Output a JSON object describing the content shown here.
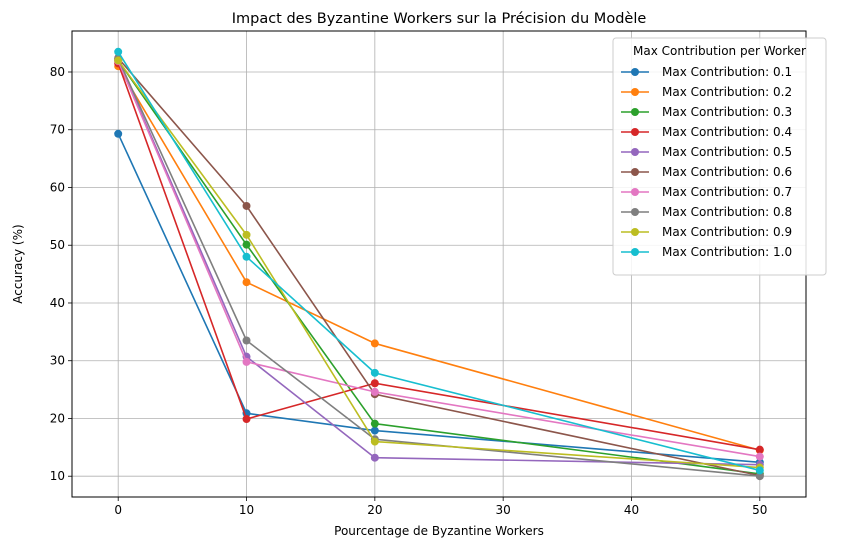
{
  "chart_data": {
    "type": "line",
    "title": "Impact des Byzantine Workers sur la Précision du Modèle",
    "xlabel": "Pourcentage de Byzantine Workers",
    "ylabel": "Accuracy (%)",
    "xlim": [
      -3.6,
      53.6
    ],
    "ylim": [
      6.4,
      87.1
    ],
    "xticks": [
      0,
      10,
      20,
      30,
      40,
      50
    ],
    "yticks": [
      10,
      20,
      30,
      40,
      50,
      60,
      70,
      80
    ],
    "grid": true,
    "legend_title": "Max Contribution per Worker",
    "legend_position": "top-right",
    "x": [
      0,
      10,
      20,
      50
    ],
    "series": [
      {
        "name": "Max Contribution: 0.1",
        "color": "#1f77b4",
        "values": [
          69.3,
          20.9,
          17.9,
          12.4
        ]
      },
      {
        "name": "Max Contribution: 0.2",
        "color": "#ff7f0e",
        "values": [
          81.0,
          43.6,
          33.0,
          14.5
        ]
      },
      {
        "name": "Max Contribution: 0.3",
        "color": "#2ca02c",
        "values": [
          82.0,
          50.1,
          19.1,
          10.4
        ]
      },
      {
        "name": "Max Contribution: 0.4",
        "color": "#d62728",
        "values": [
          81.5,
          19.9,
          26.1,
          14.6
        ]
      },
      {
        "name": "Max Contribution: 0.5",
        "color": "#9467bd",
        "values": [
          82.1,
          30.7,
          13.2,
          12.0
        ]
      },
      {
        "name": "Max Contribution: 0.6",
        "color": "#8c564b",
        "values": [
          82.4,
          56.8,
          24.2,
          10.1
        ]
      },
      {
        "name": "Max Contribution: 0.7",
        "color": "#e377c2",
        "values": [
          81.9,
          29.8,
          24.6,
          13.4
        ]
      },
      {
        "name": "Max Contribution: 0.8",
        "color": "#7f7f7f",
        "values": [
          82.3,
          33.5,
          16.4,
          10.0
        ]
      },
      {
        "name": "Max Contribution: 0.9",
        "color": "#bcbd22",
        "values": [
          82.0,
          51.8,
          16.0,
          11.5
        ]
      },
      {
        "name": "Max Contribution: 1.0",
        "color": "#17becf",
        "values": [
          83.5,
          48.0,
          27.9,
          11.0
        ]
      }
    ]
  }
}
